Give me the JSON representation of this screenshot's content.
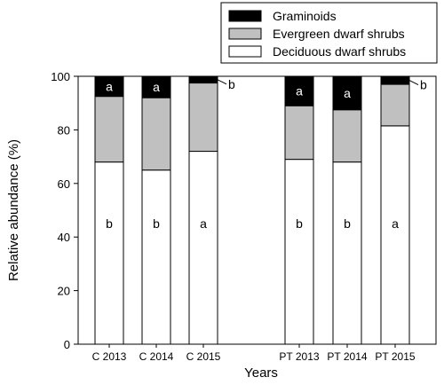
{
  "chart_data": {
    "type": "bar",
    "stacked": true,
    "categories": [
      "C 2013",
      "C 2014",
      "C 2015",
      "PT 2013",
      "PT 2014",
      "PT 2015"
    ],
    "xlabel": "Years",
    "ylabel": "Relative abundance (%)",
    "ylim": [
      0,
      100
    ],
    "yticks": [
      "0",
      "20",
      "40",
      "60",
      "80",
      "100"
    ],
    "grid": false,
    "legend_position": "top-right",
    "series": [
      {
        "name": "Deciduous dwarf shrubs",
        "color": "#ffffff",
        "values": [
          68,
          65,
          72,
          69,
          68,
          81.5
        ],
        "labels": [
          "b",
          "b",
          "a",
          "b",
          "b",
          "a"
        ]
      },
      {
        "name": "Evergreen dwarf shrubs",
        "color": "#c0c0c0",
        "values": [
          24.5,
          27,
          25.5,
          20,
          19.5,
          15.5
        ],
        "labels": [
          "",
          "",
          "",
          "",
          "",
          ""
        ]
      },
      {
        "name": "Graminoids",
        "color": "#000000",
        "values": [
          7.5,
          8,
          2.5,
          11,
          12.5,
          3
        ],
        "labels": [
          "a",
          "a",
          "b",
          "a",
          "a",
          "b"
        ]
      }
    ]
  }
}
